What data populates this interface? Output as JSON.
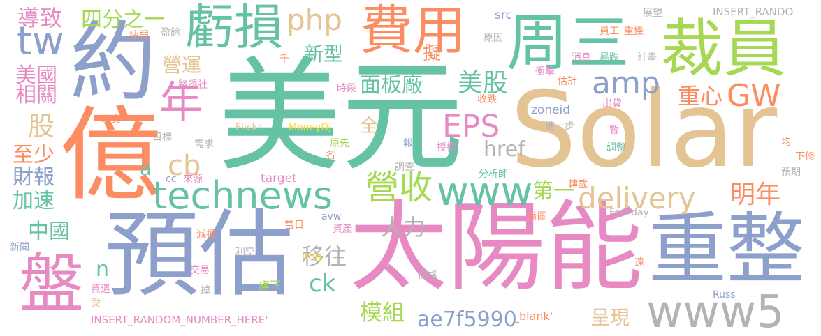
{
  "palette": {
    "background": "#ffffff",
    "green": "#66c2a5",
    "orange": "#fc8d62",
    "blue": "#8da0cb",
    "pink": "#e78ac3",
    "lime": "#a6d854",
    "yellow": "#ffd92f",
    "tan": "#e5c494",
    "gray": "#b3b3b3"
  },
  "words": [
    "美元",
    "Solar",
    "太陽能",
    "預估",
    "億",
    "約",
    "重整",
    "費用",
    "周三",
    "裁員",
    "虧損",
    "盤",
    "technews",
    "www",
    "www5",
    "年",
    "delivery",
    "營收",
    "amp",
    "EPS",
    "GW",
    "php",
    "cb",
    "tw",
    "美股",
    "面板廠",
    "模組",
    "ae7f5990",
    "中國",
    "明年",
    "重心",
    "新型",
    "營運",
    "移往",
    "href",
    "人力",
    "擬",
    "ck",
    "呈現",
    "第一",
    "四分之一",
    "導致",
    "美國",
    "相關",
    "股",
    "至少",
    "財報",
    "加速",
    "a",
    "n",
    "全",
    "INSERT_RANDOM_NUMBER_HERE'",
    "INSERT_RANDO",
    "_blank'",
    "zoneid",
    "Flickr",
    "MoneyDJ",
    "src",
    "img",
    "target",
    "avw",
    "cc",
    "Russ",
    "Ferriday",
    "千",
    "路透社",
    "本文",
    "目標",
    "需求",
    "來源",
    "當日",
    "減損",
    "利空",
    "交易",
    "資遣",
    "受",
    "掉",
    "新聞",
    "名",
    "原先",
    "報",
    "授權",
    "調查",
    "資產",
    "價格",
    "旗下",
    "首圖",
    "遠",
    "時段",
    "收跌",
    "分析師",
    "轉載",
    "調整",
    "暫",
    "均",
    "下修",
    "預期",
    "出貨",
    "估計",
    "衝擊",
    "消息",
    "暴跌",
    "計畫",
    "員工",
    "重挫",
    "展望",
    "原因",
    "進一步",
    "疲弱",
    "盈餘"
  ]
}
